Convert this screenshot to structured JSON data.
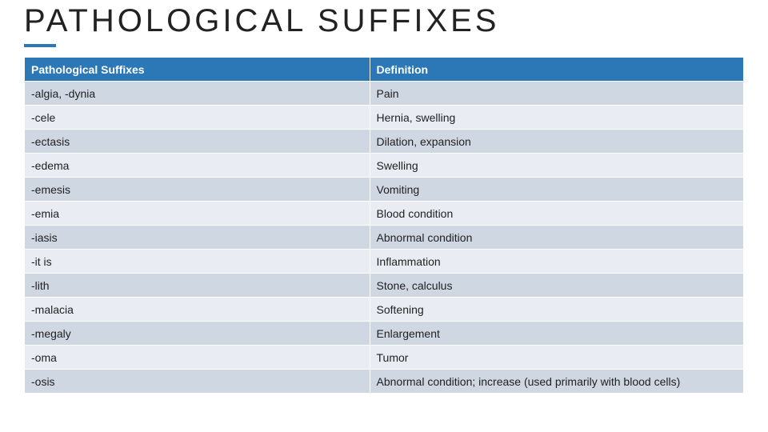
{
  "title": "PATHOLOGICAL SUFFIXES",
  "table": {
    "columns": [
      "Pathological Suffixes",
      "Definition"
    ],
    "rows": [
      [
        "-algia, -dynia",
        "Pain"
      ],
      [
        "-cele",
        "Hernia, swelling"
      ],
      [
        "-ectasis",
        "Dilation, expansion"
      ],
      [
        "-edema",
        "Swelling"
      ],
      [
        "-emesis",
        "Vomiting"
      ],
      [
        "-emia",
        "Blood condition"
      ],
      [
        "-iasis",
        "Abnormal condition"
      ],
      [
        "-it is",
        "Inflammation"
      ],
      [
        "-lith",
        "Stone, calculus"
      ],
      [
        "-malacia",
        "Softening"
      ],
      [
        "-megaly",
        "Enlargement"
      ],
      [
        "-oma",
        "Tumor"
      ],
      [
        "-osis",
        "Abnormal condition; increase (used primarily with blood cells)"
      ]
    ],
    "header_bg": "#2c78b7",
    "header_text_color": "#ffffff",
    "row_odd_bg": "#cfd7e3",
    "row_even_bg": "#e9edf3",
    "border_color": "#ffffff",
    "font_size": 14
  },
  "accent_color": "#2c78b7",
  "background_color": "#ffffff"
}
